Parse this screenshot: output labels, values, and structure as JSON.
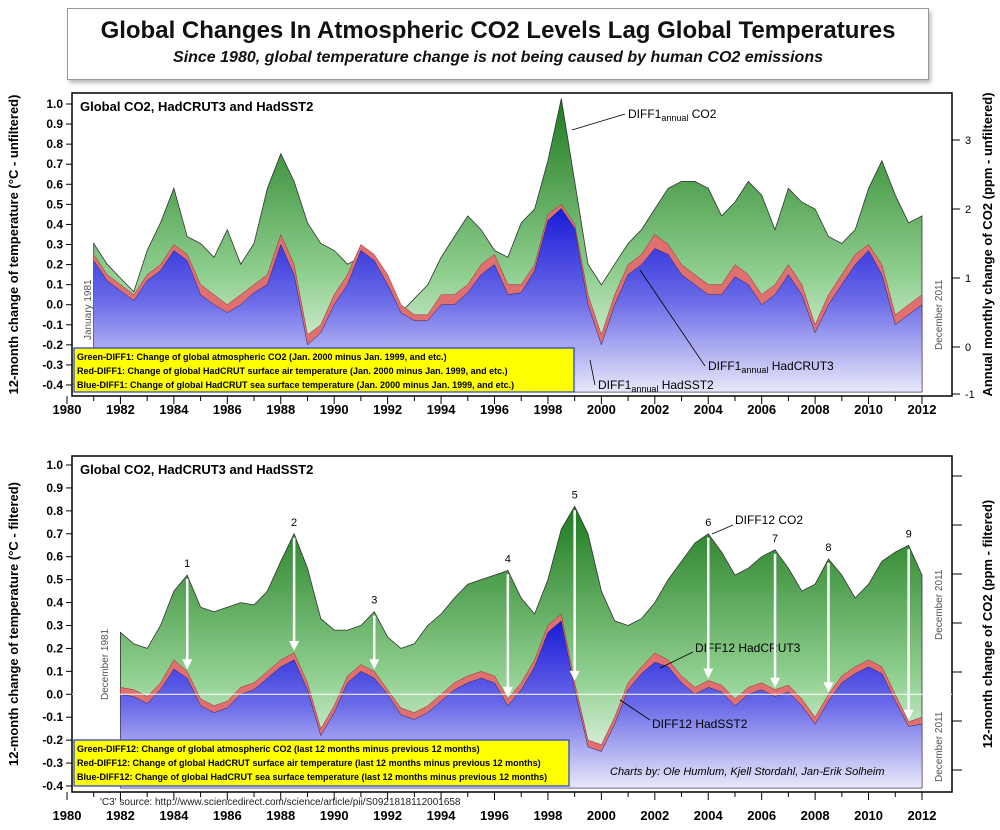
{
  "title": "Global Changes In Atmospheric CO2 Levels Lag Global Temperatures",
  "subtitle": "Since 1980, global temperature change is not being caused by human CO2 emissions",
  "colors": {
    "co2": "#2e8b2e",
    "hadcrut3": "#e07070",
    "hadsst2": "#2b2bd8",
    "legend_bg": "#ffff00",
    "legend_border": "#1f3fd0"
  },
  "source": "'C3' source: http://www.sciencedirect.com/science/article/pii/S0921818112001658",
  "credits": "Charts by:  Ole Humlum, Kjell Stordahl, Jan-Erik Solheim",
  "chart_data": [
    {
      "type": "area",
      "panel_title": "Global CO2, HadCRUT3 and HadSST2",
      "ylabel": "12-month change of temperature (°C - unfiltered)",
      "ylabel_right": "Annual monthly change of CO2 (ppm - unfiltered)",
      "xlim": [
        1980,
        2012
      ],
      "ylim": [
        -0.4,
        1.0
      ],
      "ylim_right": [
        -1,
        3.6
      ],
      "x_ticks": [
        "1980",
        "1982",
        "1984",
        "1986",
        "1988",
        "1990",
        "1992",
        "1994",
        "1996",
        "1998",
        "2000",
        "2002",
        "2004",
        "2006",
        "2008",
        "2010",
        "2012"
      ],
      "y_ticks": [
        "-0.4",
        "-0.3",
        "-0.2",
        "-0.1",
        "0.0",
        "0.1",
        "0.2",
        "0.3",
        "0.4",
        "0.5",
        "0.6",
        "0.7",
        "0.8",
        "0.9",
        "1.0"
      ],
      "y_ticks_right": [
        "-1",
        "0",
        "1",
        "2",
        "3"
      ],
      "annotations": {
        "start": "January 1981",
        "end": "December 2011",
        "co2": "DIFF1",
        "co2_sub": "annual",
        "co2_suffix": " CO2",
        "hadcrut": "DIFF1",
        "hadcrut_sub": "annual",
        "hadcrut_suffix": " HadCRUT3",
        "hadsst": "DIFF1",
        "hadsst_sub": "annual",
        "hadsst_suffix": " HadSST2"
      },
      "legend": [
        "Green-DIFF1: Change of global atmospheric CO2 (Jan. 2000 minus Jan. 1999, and etc.)",
        "Red-DIFF1: Change of global HadCRUT surface air temperature (Jan. 2000 minus Jan. 1999, and etc.)",
        "Blue-DIFF1: Change of global HadCRUT sea surface temperature (Jan. 2000 minus Jan. 1999, and etc.)"
      ],
      "legend_placement": "bottom-left",
      "x": [
        1981,
        1981.5,
        1982,
        1982.5,
        1983,
        1983.5,
        1984,
        1984.5,
        1985,
        1985.5,
        1986,
        1986.5,
        1987,
        1987.5,
        1988,
        1988.5,
        1989,
        1989.5,
        1990,
        1990.5,
        1991,
        1991.5,
        1992,
        1992.5,
        1993,
        1993.5,
        1994,
        1994.5,
        1995,
        1995.5,
        1996,
        1996.5,
        1997,
        1997.5,
        1998,
        1998.5,
        1999,
        1999.5,
        2000,
        2000.5,
        2001,
        2001.5,
        2002,
        2002.5,
        2003,
        2003.5,
        2004,
        2004.5,
        2005,
        2005.5,
        2006,
        2006.5,
        2007,
        2007.5,
        2008,
        2008.5,
        2009,
        2009.5,
        2010,
        2010.5,
        2011,
        2011.5,
        2012
      ],
      "series": [
        {
          "name": "CO2",
          "axis": "right",
          "values": [
            1.5,
            1.2,
            1.0,
            0.8,
            1.4,
            1.8,
            2.3,
            1.6,
            1.5,
            1.3,
            1.7,
            1.2,
            1.5,
            2.3,
            2.8,
            2.4,
            1.8,
            1.5,
            1.4,
            1.2,
            1.3,
            0.9,
            0.3,
            0.5,
            0.7,
            0.9,
            1.3,
            1.6,
            1.9,
            1.7,
            1.4,
            1.3,
            1.8,
            2.0,
            2.7,
            3.6,
            2.4,
            1.2,
            0.9,
            1.2,
            1.5,
            1.7,
            2.0,
            2.3,
            2.4,
            2.4,
            2.3,
            1.9,
            2.1,
            2.4,
            2.2,
            1.7,
            2.3,
            2.1,
            2.0,
            1.6,
            1.5,
            1.7,
            2.3,
            2.7,
            2.2,
            1.8,
            1.9
          ]
        },
        {
          "name": "HadCRUT3",
          "axis": "left",
          "values": [
            0.25,
            0.15,
            0.1,
            0.05,
            0.15,
            0.2,
            0.3,
            0.25,
            0.1,
            0.05,
            0.0,
            0.05,
            0.1,
            0.15,
            0.35,
            0.2,
            -0.15,
            -0.1,
            0.05,
            0.15,
            0.3,
            0.25,
            0.15,
            0.0,
            -0.05,
            -0.05,
            0.05,
            0.05,
            0.1,
            0.2,
            0.25,
            0.1,
            0.1,
            0.2,
            0.45,
            0.5,
            0.4,
            0.05,
            -0.15,
            0.05,
            0.2,
            0.25,
            0.35,
            0.3,
            0.2,
            0.15,
            0.1,
            0.1,
            0.2,
            0.15,
            0.05,
            0.1,
            0.2,
            0.1,
            -0.1,
            0.05,
            0.15,
            0.25,
            0.3,
            0.2,
            -0.05,
            0.0,
            0.05
          ]
        },
        {
          "name": "HadSST2",
          "axis": "left",
          "values": [
            0.22,
            0.12,
            0.07,
            0.02,
            0.12,
            0.17,
            0.27,
            0.22,
            0.05,
            0.0,
            -0.04,
            0.0,
            0.06,
            0.1,
            0.3,
            0.15,
            -0.2,
            -0.14,
            0.0,
            0.1,
            0.27,
            0.22,
            0.1,
            -0.04,
            -0.08,
            -0.08,
            0.0,
            0.0,
            0.06,
            0.15,
            0.2,
            0.05,
            0.06,
            0.17,
            0.42,
            0.48,
            0.38,
            0.0,
            -0.2,
            0.0,
            0.15,
            0.2,
            0.28,
            0.25,
            0.15,
            0.1,
            0.05,
            0.05,
            0.14,
            0.1,
            0.0,
            0.05,
            0.15,
            0.05,
            -0.14,
            0.0,
            0.1,
            0.2,
            0.27,
            0.15,
            -0.1,
            -0.05,
            0.0
          ]
        }
      ]
    },
    {
      "type": "area",
      "panel_title": "Global CO2, HadCRUT3 and HadSST2",
      "ylabel": "12-month change of temperature (°C - filtered)",
      "ylabel_right": "12-month change of CO2 (ppm - filtered)",
      "xlim": [
        1980,
        2012
      ],
      "ylim": [
        -0.4,
        1.0
      ],
      "x_ticks": [
        "1980",
        "1982",
        "1984",
        "1986",
        "1988",
        "1990",
        "1992",
        "1994",
        "1996",
        "1998",
        "2000",
        "2002",
        "2004",
        "2006",
        "2008",
        "2010",
        "2012"
      ],
      "y_ticks": [
        "-0.4",
        "-0.3",
        "-0.2",
        "-0.1",
        "0.0",
        "0.1",
        "0.2",
        "0.3",
        "0.4",
        "0.5",
        "0.6",
        "0.7",
        "0.8",
        "0.9",
        "1.0"
      ],
      "annotations": {
        "start": "December 1981",
        "end": "December 2011",
        "co2": "DIFF12 CO2",
        "hadcrut": "DIFF12 HadCRUT3",
        "hadsst": "DIFF12 HadSST2"
      },
      "peaks": [
        {
          "label": "1",
          "x": 1984.5
        },
        {
          "label": "2",
          "x": 1988.5
        },
        {
          "label": "3",
          "x": 1991.5
        },
        {
          "label": "4",
          "x": 1996.5
        },
        {
          "label": "5",
          "x": 1999
        },
        {
          "label": "6",
          "x": 2004
        },
        {
          "label": "7",
          "x": 2006.5
        },
        {
          "label": "8",
          "x": 2008.5
        },
        {
          "label": "9",
          "x": 2011.5
        }
      ],
      "legend": [
        "Green-DIFF12: Change of global atmospheric CO2 (last 12 months minus previous 12 months)",
        "Red-DIFF12: Change of global HadCRUT surface air temperature (last 12 months minus previous 12 months)",
        "Blue-DIFF12: Change of global HadCRUT sea surface temperature (last 12 months minus previous 12 months)"
      ],
      "legend_placement": "bottom-left",
      "x": [
        1982,
        1982.5,
        1983,
        1983.5,
        1984,
        1984.5,
        1985,
        1985.5,
        1986,
        1986.5,
        1987,
        1987.5,
        1988,
        1988.5,
        1989,
        1989.5,
        1990,
        1990.5,
        1991,
        1991.5,
        1992,
        1992.5,
        1993,
        1993.5,
        1994,
        1994.5,
        1995,
        1995.5,
        1996,
        1996.5,
        1997,
        1997.5,
        1998,
        1998.5,
        1999,
        1999.5,
        2000,
        2000.5,
        2001,
        2001.5,
        2002,
        2002.5,
        2003,
        2003.5,
        2004,
        2004.5,
        2005,
        2005.5,
        2006,
        2006.5,
        2007,
        2007.5,
        2008,
        2008.5,
        2009,
        2009.5,
        2010,
        2010.5,
        2011,
        2011.5,
        2012
      ],
      "series": [
        {
          "name": "CO2",
          "values": [
            0.27,
            0.22,
            0.2,
            0.3,
            0.45,
            0.52,
            0.38,
            0.36,
            0.38,
            0.4,
            0.39,
            0.45,
            0.58,
            0.7,
            0.55,
            0.33,
            0.28,
            0.28,
            0.3,
            0.36,
            0.25,
            0.2,
            0.22,
            0.3,
            0.35,
            0.42,
            0.48,
            0.5,
            0.52,
            0.54,
            0.42,
            0.35,
            0.5,
            0.72,
            0.82,
            0.7,
            0.45,
            0.32,
            0.3,
            0.33,
            0.4,
            0.5,
            0.58,
            0.66,
            0.7,
            0.62,
            0.52,
            0.55,
            0.6,
            0.63,
            0.55,
            0.45,
            0.48,
            0.59,
            0.52,
            0.42,
            0.48,
            0.58,
            0.62,
            0.65,
            0.52
          ]
        },
        {
          "name": "HadCRUT3",
          "values": [
            0.03,
            0.02,
            -0.01,
            0.05,
            0.15,
            0.1,
            -0.02,
            -0.05,
            -0.03,
            0.03,
            0.05,
            0.1,
            0.15,
            0.18,
            0.05,
            -0.15,
            -0.05,
            0.08,
            0.13,
            0.1,
            0.02,
            -0.06,
            -0.08,
            -0.05,
            0.0,
            0.05,
            0.08,
            0.1,
            0.08,
            -0.02,
            0.05,
            0.15,
            0.3,
            0.35,
            0.05,
            -0.2,
            -0.22,
            -0.1,
            0.05,
            0.12,
            0.18,
            0.15,
            0.08,
            0.03,
            0.06,
            0.04,
            -0.02,
            0.03,
            0.05,
            0.02,
            0.04,
            -0.02,
            -0.1,
            0.0,
            0.08,
            0.12,
            0.15,
            0.12,
            0.0,
            -0.12,
            -0.1
          ]
        },
        {
          "name": "HadSST2",
          "values": [
            0.0,
            -0.01,
            -0.04,
            0.02,
            0.11,
            0.07,
            -0.05,
            -0.08,
            -0.06,
            0.0,
            0.02,
            0.07,
            0.12,
            0.15,
            0.02,
            -0.18,
            -0.08,
            0.05,
            0.1,
            0.07,
            0.0,
            -0.09,
            -0.11,
            -0.08,
            -0.03,
            0.02,
            0.05,
            0.07,
            0.05,
            -0.05,
            0.02,
            0.12,
            0.27,
            0.32,
            0.02,
            -0.23,
            -0.25,
            -0.13,
            0.02,
            0.09,
            0.14,
            0.12,
            0.05,
            0.0,
            0.03,
            0.01,
            -0.05,
            0.0,
            0.02,
            -0.01,
            0.01,
            -0.05,
            -0.13,
            -0.03,
            0.05,
            0.09,
            0.12,
            0.09,
            -0.03,
            -0.14,
            -0.13
          ]
        }
      ]
    }
  ]
}
